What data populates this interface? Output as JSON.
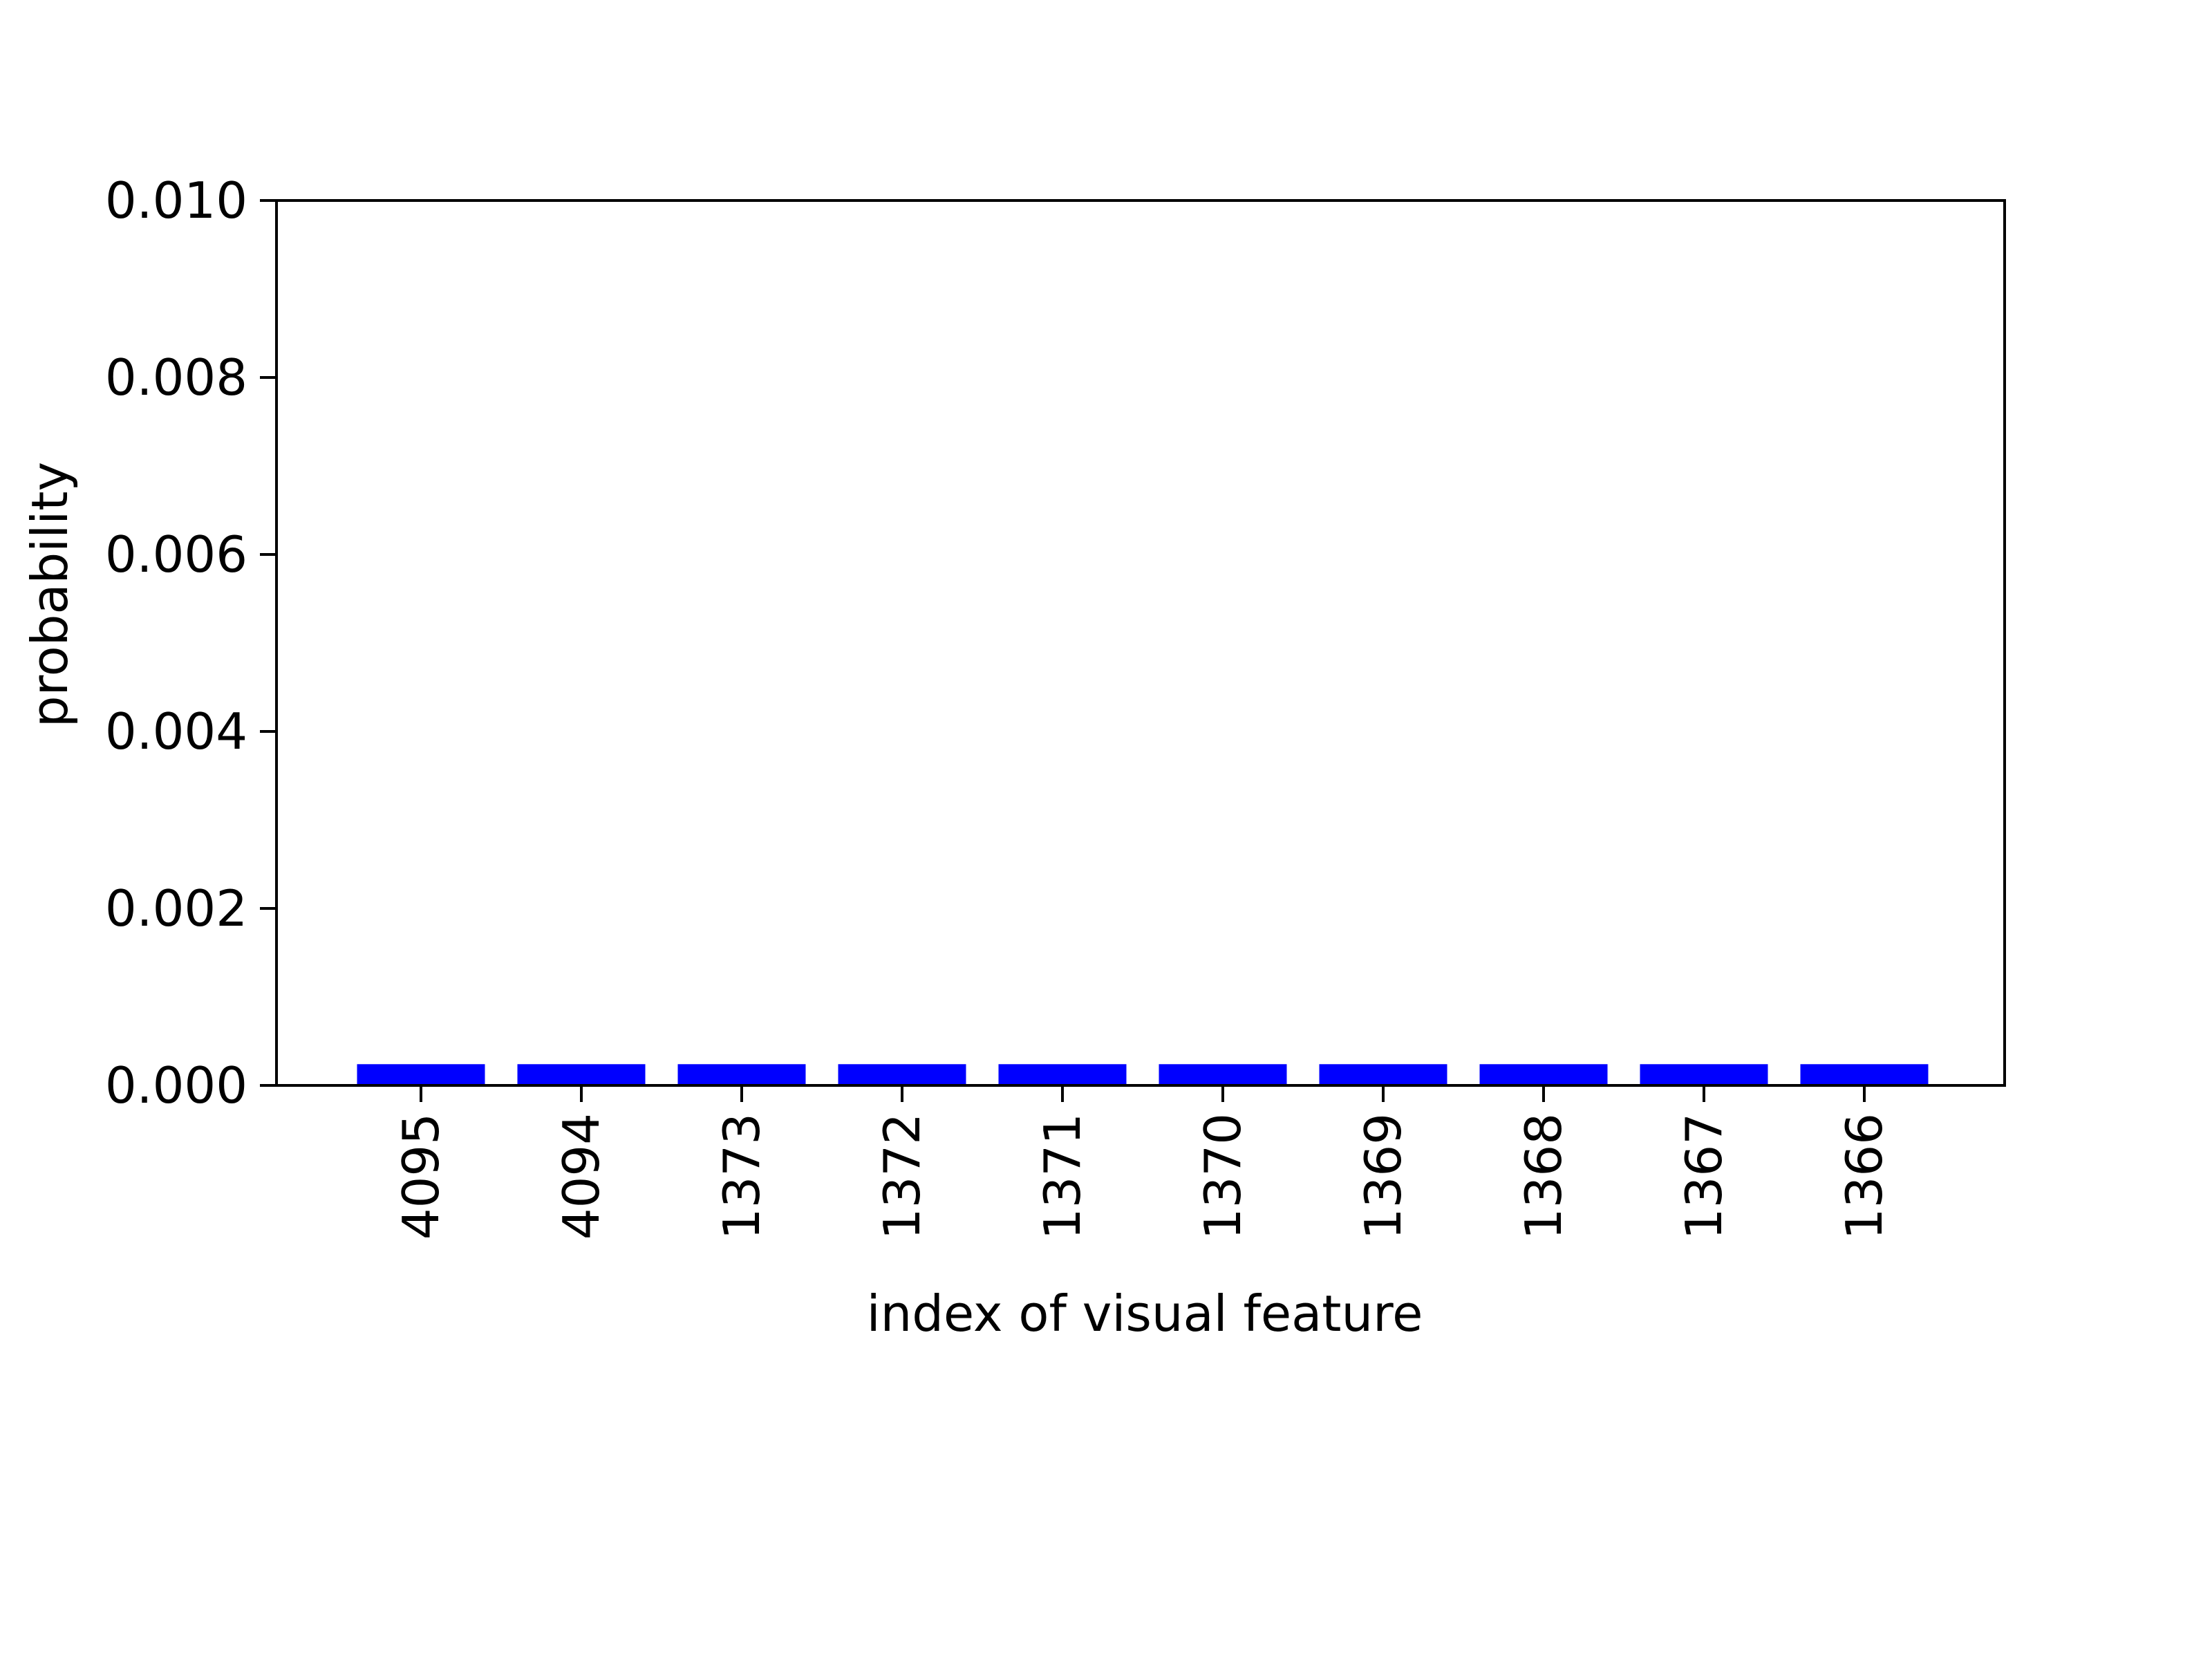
{
  "chart_data": {
    "type": "bar",
    "title": "",
    "xlabel": "index of visual feature",
    "ylabel": "probability",
    "categories": [
      "4095",
      "4094",
      "1373",
      "1372",
      "1371",
      "1370",
      "1369",
      "1368",
      "1367",
      "1366"
    ],
    "values": [
      0.00024,
      0.00024,
      0.00024,
      0.00024,
      0.00024,
      0.00024,
      0.00024,
      0.00024,
      0.00024,
      0.00024
    ],
    "ylim": [
      0,
      0.01
    ],
    "yticks": [
      "0.000",
      "0.002",
      "0.004",
      "0.006",
      "0.008",
      "0.010"
    ],
    "ytick_values": [
      0,
      0.002,
      0.004,
      0.006,
      0.008,
      0.01
    ],
    "x_tick_rotation": "vertical",
    "grid": false,
    "legend": "none",
    "bar_color": "#0000ff"
  }
}
